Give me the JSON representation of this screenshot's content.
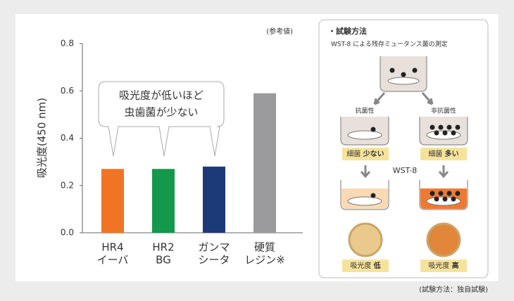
{
  "chart_data": {
    "type": "bar",
    "y_label": "吸光度(450 nm)",
    "note": "(参考値)",
    "categories": [
      [
        "HR4",
        "イーバ"
      ],
      [
        "HR2",
        "BG"
      ],
      [
        "ガンマ",
        "シータ"
      ],
      [
        "硬質",
        "レジン※"
      ]
    ],
    "values": [
      0.27,
      0.27,
      0.28,
      0.59
    ],
    "colors": [
      "#f07423",
      "#14984b",
      "#1c3a78",
      "#9b9b9d"
    ],
    "ylim": [
      0,
      0.8
    ],
    "yticks": [
      {
        "value": 0,
        "label": "0.0"
      },
      0.2,
      0.4,
      0.6,
      0.8
    ],
    "callout": [
      "吸光度が低いほど",
      "虫歯菌が少ない"
    ]
  },
  "method": {
    "title": "・試験方法",
    "subtitle": "WST-8 による残存ミュータンス菌の測定",
    "left_label": "抗菌性",
    "right_label": "非抗菌性",
    "left_result": [
      "細菌",
      "少ない"
    ],
    "right_result": [
      "細菌",
      "多い"
    ],
    "reagent": "WST-8",
    "left_absorbance": [
      "吸光度",
      "低"
    ],
    "right_absorbance": [
      "吸光度",
      "高"
    ]
  },
  "footer": "(試験方法：独自試験)"
}
